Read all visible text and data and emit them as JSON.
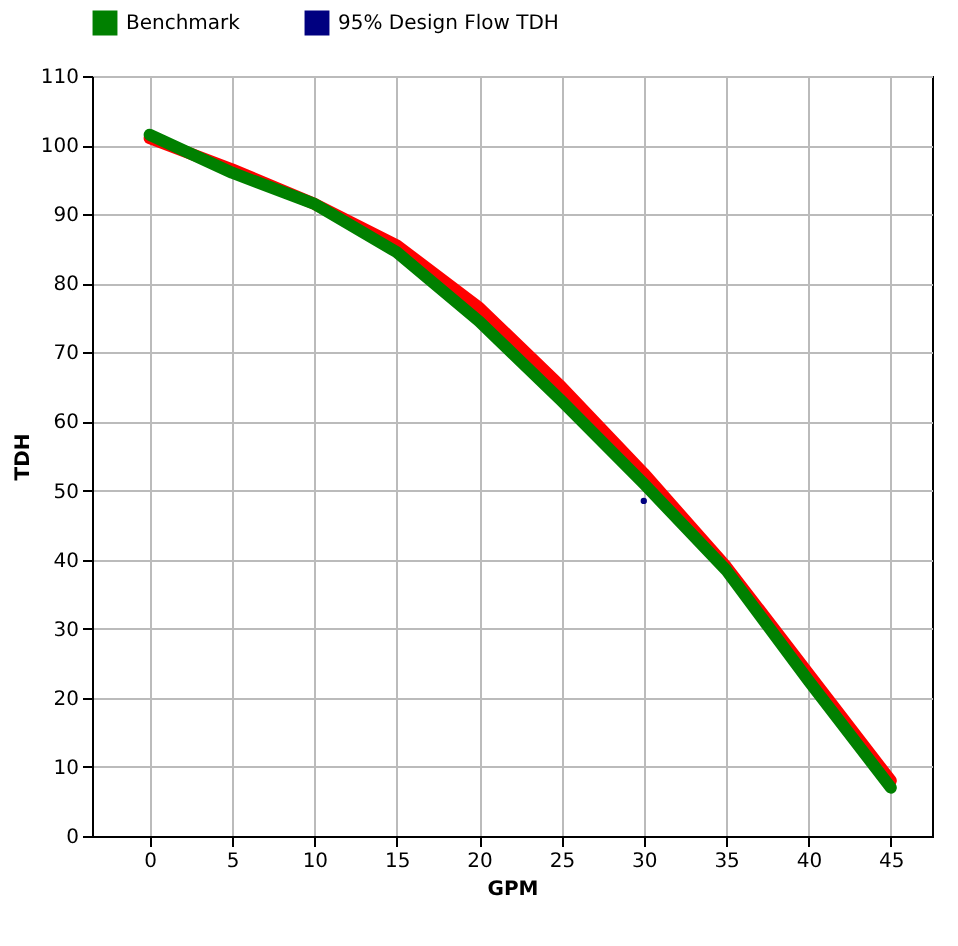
{
  "chart_data": {
    "type": "line",
    "xlabel": "GPM",
    "ylabel": "TDH",
    "x": [
      0,
      5,
      10,
      15,
      20,
      25,
      30,
      35,
      40,
      45
    ],
    "series": [
      {
        "color": "#ff0000",
        "values": [
          101,
          96.5,
          91.5,
          85.5,
          76.5,
          65,
          52.5,
          39,
          23.5,
          8
        ]
      },
      {
        "name": "Benchmark",
        "color": "#008000",
        "values": [
          101.5,
          96,
          91.5,
          84.5,
          74.5,
          63,
          51,
          38.5,
          22.5,
          7
        ]
      },
      {
        "name": "95% Design Flow TDH",
        "color": "#000080",
        "type": "scatter",
        "x": [
          30
        ],
        "values": [
          48.5
        ]
      }
    ],
    "xlim": [
      -3.5,
      47.5
    ],
    "xticks": [
      0,
      5,
      10,
      15,
      20,
      25,
      30,
      35,
      40,
      45
    ],
    "ylim": [
      0,
      110
    ],
    "yticks": [
      0,
      10,
      20,
      30,
      40,
      50,
      60,
      70,
      80,
      90,
      100,
      110
    ],
    "grid": true,
    "legend": "top",
    "marker": "none",
    "line_style": "solid"
  }
}
